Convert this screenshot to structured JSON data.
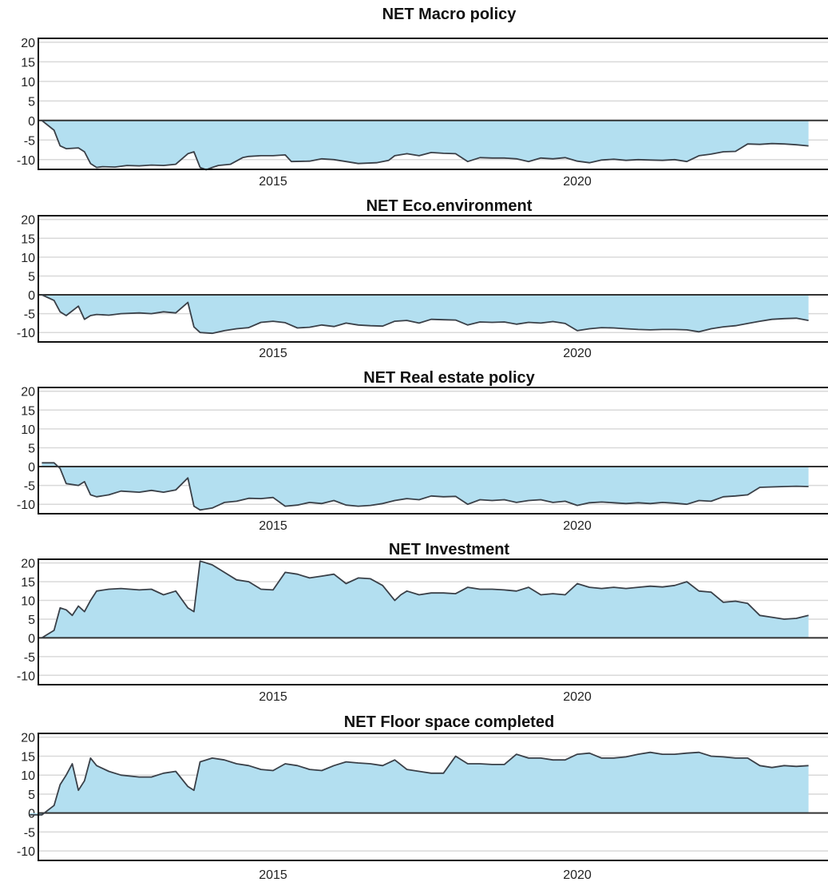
{
  "figure": {
    "fill_color": "#b3dff0",
    "line_color": "#3a4048"
  },
  "chart_data": [
    {
      "type": "area",
      "title": "NET Macro policy",
      "x_ticks": [
        "2015",
        "2020"
      ],
      "y_ticks": [
        20,
        15,
        10,
        5,
        0,
        -5,
        -10
      ],
      "ylim": [
        -12.5,
        21
      ],
      "grid": true,
      "series": [
        {
          "x": [
            2011.2,
            2011.4,
            2011.5,
            2011.6,
            2011.8,
            2011.9,
            2012.0,
            2012.1,
            2012.2,
            2012.4,
            2012.6,
            2012.8,
            2013.0,
            2013.2,
            2013.4,
            2013.6,
            2013.7,
            2013.8,
            2013.9,
            2014.0,
            2014.1,
            2014.3,
            2014.5,
            2014.6,
            2014.8,
            2015.0,
            2015.2,
            2015.3,
            2015.6,
            2015.8,
            2016.0,
            2016.2,
            2016.4,
            2016.7,
            2016.9,
            2017.0,
            2017.2,
            2017.4,
            2017.6,
            2017.8,
            2018.0,
            2018.2,
            2018.4,
            2018.6,
            2018.8,
            2019.0,
            2019.2,
            2019.4,
            2019.6,
            2019.8,
            2020.0,
            2020.2,
            2020.4,
            2020.6,
            2020.8,
            2021.0,
            2021.2,
            2021.4,
            2021.6,
            2021.8,
            2022.0,
            2022.2,
            2022.4,
            2022.6,
            2022.8,
            2023.0,
            2023.2,
            2023.4,
            2023.6,
            2023.8
          ],
          "values": [
            0,
            -2.5,
            -6.5,
            -7.2,
            -7.0,
            -8.0,
            -11.0,
            -12.0,
            -11.8,
            -11.9,
            -11.5,
            -11.6,
            -11.4,
            -11.5,
            -11.2,
            -8.5,
            -8.0,
            -12.0,
            -12.6,
            -12.0,
            -11.5,
            -11.2,
            -9.5,
            -9.2,
            -9.0,
            -9.0,
            -8.8,
            -10.5,
            -10.4,
            -9.8,
            -10.0,
            -10.5,
            -11.0,
            -10.8,
            -10.2,
            -9.0,
            -8.5,
            -9.0,
            -8.2,
            -8.4,
            -8.5,
            -10.5,
            -9.5,
            -9.6,
            -9.6,
            -9.8,
            -10.5,
            -9.6,
            -9.8,
            -9.5,
            -10.4,
            -10.8,
            -10.1,
            -9.9,
            -10.2,
            -10.0,
            -10.1,
            -10.2,
            -10.0,
            -10.5,
            -9.0,
            -8.6,
            -8.0,
            -7.9,
            -6.0,
            -6.1,
            -5.9,
            -6.0,
            -6.2,
            -6.5
          ]
        }
      ]
    },
    {
      "type": "area",
      "title": "NET Eco.environment",
      "x_ticks": [
        "2015",
        "2020"
      ],
      "y_ticks": [
        20,
        15,
        10,
        5,
        0,
        -5,
        -10
      ],
      "ylim": [
        -12.5,
        21
      ],
      "grid": true,
      "series": [
        {
          "x": [
            2011.2,
            2011.4,
            2011.5,
            2011.6,
            2011.8,
            2011.9,
            2012.0,
            2012.1,
            2012.3,
            2012.5,
            2012.8,
            2013.0,
            2013.2,
            2013.4,
            2013.6,
            2013.7,
            2013.8,
            2014.0,
            2014.2,
            2014.4,
            2014.6,
            2014.8,
            2015.0,
            2015.2,
            2015.4,
            2015.6,
            2015.8,
            2016.0,
            2016.2,
            2016.4,
            2016.6,
            2016.8,
            2017.0,
            2017.2,
            2017.4,
            2017.6,
            2017.8,
            2018.0,
            2018.2,
            2018.4,
            2018.6,
            2018.8,
            2019.0,
            2019.2,
            2019.4,
            2019.6,
            2019.8,
            2020.0,
            2020.2,
            2020.4,
            2020.6,
            2020.8,
            2021.0,
            2021.2,
            2021.4,
            2021.6,
            2021.8,
            2022.0,
            2022.2,
            2022.4,
            2022.6,
            2022.8,
            2023.0,
            2023.2,
            2023.4,
            2023.6,
            2023.8
          ],
          "values": [
            0,
            -1.5,
            -4.5,
            -5.5,
            -3.0,
            -6.5,
            -5.5,
            -5.2,
            -5.4,
            -5.0,
            -4.8,
            -5.0,
            -4.5,
            -4.8,
            -2.0,
            -8.5,
            -10.0,
            -10.2,
            -9.5,
            -9.0,
            -8.7,
            -7.3,
            -7.0,
            -7.4,
            -8.8,
            -8.6,
            -8.0,
            -8.4,
            -7.5,
            -8.0,
            -8.2,
            -8.3,
            -7.0,
            -6.8,
            -7.5,
            -6.5,
            -6.6,
            -6.7,
            -8.0,
            -7.2,
            -7.3,
            -7.2,
            -7.8,
            -7.3,
            -7.5,
            -7.1,
            -7.6,
            -9.5,
            -9.0,
            -8.7,
            -8.8,
            -9.0,
            -9.2,
            -9.3,
            -9.2,
            -9.2,
            -9.3,
            -9.8,
            -9.0,
            -8.5,
            -8.2,
            -7.6,
            -7.0,
            -6.5,
            -6.3,
            -6.2,
            -6.8
          ]
        }
      ]
    },
    {
      "type": "area",
      "title": "NET Real estate policy",
      "x_ticks": [
        "2015",
        "2020"
      ],
      "y_ticks": [
        20,
        15,
        10,
        5,
        0,
        -5,
        -10
      ],
      "ylim": [
        -12.5,
        21
      ],
      "grid": true,
      "series": [
        {
          "x": [
            2011.2,
            2011.4,
            2011.5,
            2011.6,
            2011.8,
            2011.9,
            2012.0,
            2012.1,
            2012.3,
            2012.5,
            2012.8,
            2013.0,
            2013.2,
            2013.4,
            2013.6,
            2013.7,
            2013.8,
            2014.0,
            2014.2,
            2014.4,
            2014.6,
            2014.8,
            2015.0,
            2015.2,
            2015.4,
            2015.6,
            2015.8,
            2016.0,
            2016.2,
            2016.4,
            2016.6,
            2016.8,
            2017.0,
            2017.2,
            2017.4,
            2017.6,
            2017.8,
            2018.0,
            2018.2,
            2018.4,
            2018.6,
            2018.8,
            2019.0,
            2019.2,
            2019.4,
            2019.6,
            2019.8,
            2020.0,
            2020.2,
            2020.4,
            2020.6,
            2020.8,
            2021.0,
            2021.2,
            2021.4,
            2021.6,
            2021.8,
            2022.0,
            2022.2,
            2022.4,
            2022.6,
            2022.8,
            2023.0,
            2023.2,
            2023.4,
            2023.6,
            2023.8
          ],
          "values": [
            1,
            1,
            -0.5,
            -4.5,
            -5.0,
            -4.0,
            -7.5,
            -8.0,
            -7.5,
            -6.5,
            -6.8,
            -6.3,
            -6.8,
            -6.2,
            -3.0,
            -10.5,
            -11.5,
            -11.0,
            -9.5,
            -9.2,
            -8.4,
            -8.5,
            -8.2,
            -10.5,
            -10.2,
            -9.5,
            -9.8,
            -9.0,
            -10.2,
            -10.5,
            -10.3,
            -9.8,
            -9.0,
            -8.5,
            -8.8,
            -7.8,
            -8.0,
            -7.9,
            -10.0,
            -8.8,
            -9.0,
            -8.8,
            -9.5,
            -9.0,
            -8.8,
            -9.5,
            -9.2,
            -10.3,
            -9.6,
            -9.4,
            -9.6,
            -9.8,
            -9.6,
            -9.8,
            -9.5,
            -9.7,
            -10.0,
            -9.0,
            -9.2,
            -8.0,
            -7.8,
            -7.5,
            -5.5,
            -5.4,
            -5.3,
            -5.2,
            -5.3
          ]
        }
      ]
    },
    {
      "type": "area",
      "title": "NET Investment",
      "x_ticks": [
        "2015",
        "2020"
      ],
      "y_ticks": [
        20,
        15,
        10,
        5,
        0,
        -5,
        -10
      ],
      "ylim": [
        -12.5,
        21
      ],
      "grid": true,
      "series": [
        {
          "x": [
            2011.2,
            2011.4,
            2011.5,
            2011.6,
            2011.7,
            2011.8,
            2011.9,
            2012.0,
            2012.1,
            2012.3,
            2012.5,
            2012.8,
            2013.0,
            2013.2,
            2013.4,
            2013.6,
            2013.7,
            2013.8,
            2014.0,
            2014.2,
            2014.4,
            2014.6,
            2014.8,
            2015.0,
            2015.2,
            2015.4,
            2015.6,
            2015.8,
            2016.0,
            2016.2,
            2016.4,
            2016.6,
            2016.8,
            2017.0,
            2017.1,
            2017.2,
            2017.4,
            2017.6,
            2017.8,
            2018.0,
            2018.2,
            2018.4,
            2018.6,
            2018.8,
            2019.0,
            2019.2,
            2019.4,
            2019.6,
            2019.8,
            2020.0,
            2020.2,
            2020.4,
            2020.6,
            2020.8,
            2021.0,
            2021.2,
            2021.4,
            2021.6,
            2021.8,
            2022.0,
            2022.2,
            2022.4,
            2022.6,
            2022.8,
            2023.0,
            2023.2,
            2023.4,
            2023.6,
            2023.8
          ],
          "values": [
            0,
            2,
            8,
            7.5,
            6,
            8.5,
            7,
            10,
            12.5,
            13,
            13.2,
            12.8,
            13,
            11.5,
            12.5,
            8,
            7,
            20.5,
            19.5,
            17.5,
            15.5,
            15,
            13,
            12.8,
            17.5,
            17,
            16,
            16.5,
            17,
            14.5,
            16,
            15.8,
            14,
            10,
            11.5,
            12.5,
            11.5,
            12,
            12,
            11.8,
            13.5,
            13,
            13,
            12.8,
            12.5,
            13.5,
            11.5,
            11.8,
            11.5,
            14.5,
            13.5,
            13.2,
            13.5,
            13.2,
            13.5,
            13.8,
            13.6,
            14,
            15,
            12.5,
            12.2,
            9.5,
            9.8,
            9.2,
            6,
            5.5,
            5,
            5.2,
            6
          ]
        }
      ]
    },
    {
      "type": "area",
      "title": "NET Floor space completed",
      "x_ticks": [
        "2015",
        "2020"
      ],
      "y_ticks": [
        20,
        15,
        10,
        5,
        0,
        -5,
        -10
      ],
      "ylim": [
        -12.5,
        21
      ],
      "grid": true,
      "series": [
        {
          "x": [
            2011.0,
            2011.2,
            2011.4,
            2011.5,
            2011.6,
            2011.7,
            2011.8,
            2011.9,
            2012.0,
            2012.1,
            2012.3,
            2012.5,
            2012.8,
            2013.0,
            2013.2,
            2013.4,
            2013.6,
            2013.7,
            2013.8,
            2014.0,
            2014.2,
            2014.4,
            2014.6,
            2014.8,
            2015.0,
            2015.2,
            2015.4,
            2015.6,
            2015.8,
            2016.0,
            2016.2,
            2016.4,
            2016.6,
            2016.8,
            2017.0,
            2017.2,
            2017.4,
            2017.6,
            2017.8,
            2018.0,
            2018.2,
            2018.4,
            2018.6,
            2018.8,
            2019.0,
            2019.2,
            2019.4,
            2019.6,
            2019.8,
            2020.0,
            2020.2,
            2020.4,
            2020.6,
            2020.8,
            2021.0,
            2021.2,
            2021.4,
            2021.6,
            2021.8,
            2022.0,
            2022.2,
            2022.4,
            2022.6,
            2022.8,
            2023.0,
            2023.2,
            2023.4,
            2023.6,
            2023.8
          ],
          "values": [
            -0.5,
            -0.5,
            2,
            7.5,
            10,
            13,
            6,
            8.5,
            14.5,
            12.5,
            11,
            10,
            9.5,
            9.5,
            10.5,
            11,
            7,
            6,
            13.5,
            14.5,
            14,
            13,
            12.5,
            11.5,
            11.2,
            13,
            12.5,
            11.5,
            11.2,
            12.5,
            13.5,
            13.2,
            13,
            12.5,
            14,
            11.5,
            11,
            10.5,
            10.5,
            15,
            13,
            13,
            12.8,
            12.8,
            15.5,
            14.5,
            14.5,
            14,
            14,
            15.5,
            15.8,
            14.5,
            14.5,
            14.8,
            15.5,
            16,
            15.5,
            15.5,
            15.8,
            16,
            15,
            14.8,
            14.5,
            14.5,
            12.5,
            12,
            12.5,
            12.3,
            12.5
          ]
        }
      ]
    }
  ]
}
